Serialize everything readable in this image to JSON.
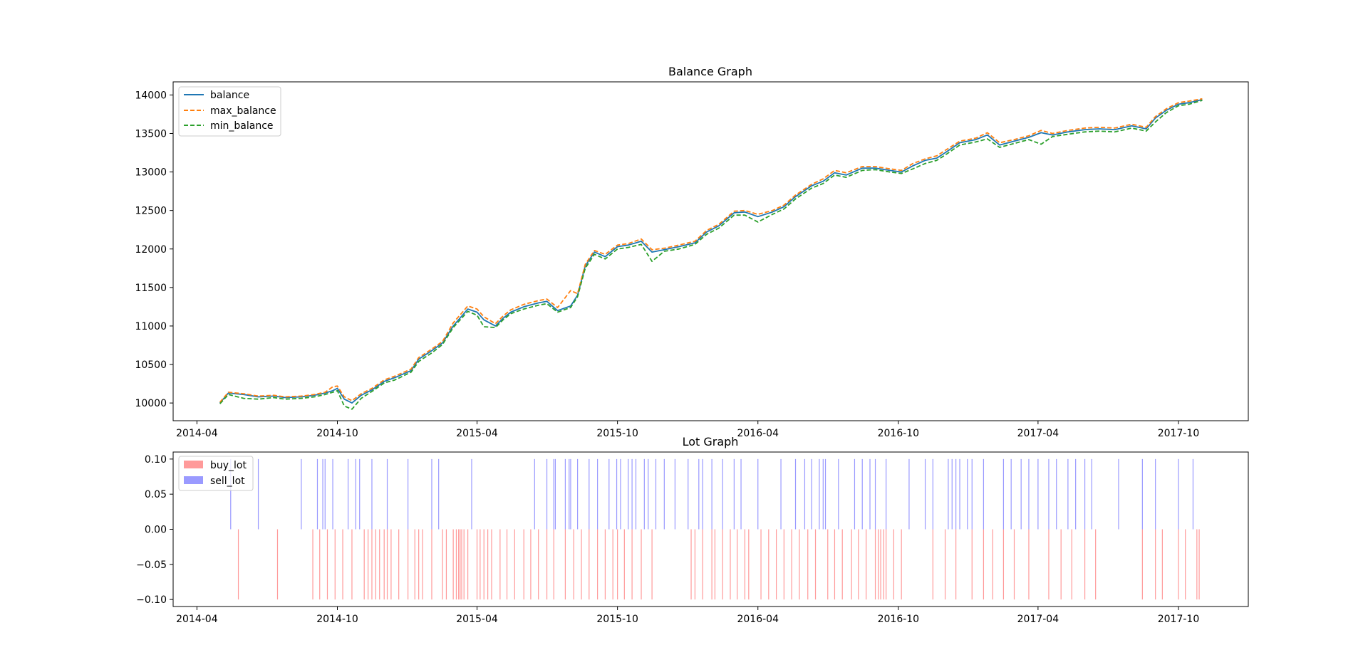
{
  "chart_data": [
    {
      "type": "line",
      "title": "Balance Graph",
      "xlabel": "",
      "ylabel": "",
      "x_range": [
        "2014-03-01",
        "2017-12-31"
      ],
      "ylim": [
        9770,
        14170
      ],
      "x_ticks": [
        "2014-04",
        "2014-10",
        "2015-04",
        "2015-10",
        "2016-04",
        "2016-10",
        "2017-04",
        "2017-10"
      ],
      "y_ticks": [
        10000,
        10500,
        11000,
        11500,
        12000,
        12500,
        13000,
        13500,
        14000
      ],
      "legend_position": "top-left",
      "series": [
        {
          "name": "balance",
          "color": "#1f77b4",
          "style": "solid"
        },
        {
          "name": "max_balance",
          "color": "#ff7f0e",
          "style": "dashed"
        },
        {
          "name": "min_balance",
          "color": "#2ca02c",
          "style": "dashed"
        }
      ],
      "x": [
        "2014-05-01",
        "2014-05-12",
        "2014-06-01",
        "2014-06-20",
        "2014-07-10",
        "2014-07-25",
        "2014-08-15",
        "2014-09-01",
        "2014-09-15",
        "2014-09-25",
        "2014-10-01",
        "2014-10-10",
        "2014-10-20",
        "2014-11-01",
        "2014-11-15",
        "2014-12-01",
        "2014-12-15",
        "2015-01-05",
        "2015-01-15",
        "2015-02-01",
        "2015-02-15",
        "2015-03-01",
        "2015-03-20",
        "2015-04-01",
        "2015-04-10",
        "2015-04-25",
        "2015-05-05",
        "2015-05-15",
        "2015-06-01",
        "2015-06-20",
        "2015-07-01",
        "2015-07-15",
        "2015-08-01",
        "2015-08-10",
        "2015-08-20",
        "2015-09-01",
        "2015-09-15",
        "2015-10-01",
        "2015-10-15",
        "2015-11-01",
        "2015-11-15",
        "2015-12-01",
        "2015-12-20",
        "2016-01-10",
        "2016-01-25",
        "2016-02-10",
        "2016-03-01",
        "2016-03-15",
        "2016-04-01",
        "2016-04-20",
        "2016-05-05",
        "2016-05-20",
        "2016-06-10",
        "2016-06-25",
        "2016-07-10",
        "2016-07-25",
        "2016-08-15",
        "2016-09-01",
        "2016-09-20",
        "2016-10-05",
        "2016-10-20",
        "2016-11-05",
        "2016-11-20",
        "2016-12-01",
        "2016-12-20",
        "2017-01-10",
        "2017-01-25",
        "2017-02-10",
        "2017-03-01",
        "2017-03-20",
        "2017-04-05",
        "2017-04-20",
        "2017-05-10",
        "2017-06-01",
        "2017-06-20",
        "2017-07-10",
        "2017-08-01",
        "2017-08-20",
        "2017-09-01",
        "2017-09-15",
        "2017-10-01",
        "2017-10-15",
        "2017-11-01"
      ],
      "balance": [
        10000,
        10130,
        10110,
        10080,
        10090,
        10070,
        10080,
        10100,
        10130,
        10160,
        10190,
        10050,
        10000,
        10100,
        10170,
        10280,
        10330,
        10420,
        10570,
        10680,
        10780,
        11000,
        11220,
        11180,
        11080,
        11000,
        11100,
        11180,
        11250,
        11300,
        11320,
        11200,
        11260,
        11400,
        11780,
        11960,
        11900,
        12030,
        12050,
        12100,
        11960,
        11990,
        12030,
        12080,
        12220,
        12300,
        12470,
        12480,
        12420,
        12480,
        12550,
        12680,
        12820,
        12880,
        12990,
        12960,
        13050,
        13050,
        13020,
        13000,
        13080,
        13150,
        13180,
        13250,
        13380,
        13420,
        13480,
        13350,
        13400,
        13450,
        13510,
        13480,
        13520,
        13550,
        13560,
        13550,
        13600,
        13560,
        13700,
        13800,
        13880,
        13900,
        13940
      ],
      "max_balance": [
        10010,
        10140,
        10120,
        10090,
        10100,
        10080,
        10090,
        10110,
        10140,
        10210,
        10220,
        10080,
        10030,
        10120,
        10190,
        10300,
        10350,
        10440,
        10590,
        10700,
        10800,
        11040,
        11260,
        11220,
        11120,
        11030,
        11130,
        11210,
        11280,
        11330,
        11350,
        11240,
        11460,
        11420,
        11800,
        11980,
        11930,
        12050,
        12070,
        12130,
        11990,
        12010,
        12050,
        12100,
        12240,
        12320,
        12490,
        12500,
        12450,
        12500,
        12570,
        12700,
        12840,
        12910,
        13020,
        12990,
        13070,
        13070,
        13040,
        13020,
        13110,
        13170,
        13210,
        13280,
        13400,
        13440,
        13510,
        13380,
        13420,
        13470,
        13540,
        13500,
        13540,
        13570,
        13580,
        13570,
        13620,
        13580,
        13720,
        13820,
        13900,
        13920,
        13950
      ],
      "min_balance": [
        9990,
        10110,
        10060,
        10050,
        10070,
        10050,
        10060,
        10080,
        10110,
        10140,
        10160,
        9960,
        9920,
        10060,
        10150,
        10260,
        10300,
        10400,
        10540,
        10650,
        10760,
        10980,
        11190,
        11140,
        10990,
        10980,
        11080,
        11160,
        11220,
        11270,
        11290,
        11180,
        11240,
        11380,
        11750,
        11930,
        11870,
        12000,
        12020,
        12060,
        11840,
        11970,
        12000,
        12060,
        12190,
        12270,
        12440,
        12440,
        12350,
        12450,
        12520,
        12650,
        12790,
        12850,
        12960,
        12930,
        13020,
        13030,
        13000,
        12980,
        13040,
        13110,
        13150,
        13220,
        13350,
        13390,
        13430,
        13320,
        13370,
        13420,
        13360,
        13460,
        13490,
        13520,
        13530,
        13520,
        13570,
        13530,
        13650,
        13770,
        13860,
        13880,
        13930
      ]
    },
    {
      "type": "bar",
      "title": "Lot Graph",
      "xlabel": "",
      "ylabel": "",
      "x_range": [
        "2014-03-01",
        "2017-12-31"
      ],
      "ylim": [
        -0.11,
        0.11
      ],
      "x_ticks": [
        "2014-04",
        "2014-10",
        "2015-04",
        "2015-10",
        "2016-04",
        "2016-10",
        "2017-04",
        "2017-10"
      ],
      "y_ticks": [
        0.1,
        0.05,
        0.0,
        -0.05,
        -0.1
      ],
      "y_tick_labels": [
        "0.10",
        "0.05",
        "0.00",
        "−0.05",
        "−0.10"
      ],
      "legend_position": "top-left",
      "series": [
        {
          "name": "buy_lot",
          "color": "#ff9a9a",
          "value": -0.1
        },
        {
          "name": "sell_lot",
          "color": "#9a9aff",
          "value": 0.1
        }
      ],
      "sell_lot_dates": [
        "2014-05-15",
        "2014-06-20",
        "2014-08-15",
        "2014-09-05",
        "2014-09-12",
        "2014-09-15",
        "2014-09-25",
        "2014-10-15",
        "2014-10-25",
        "2014-10-30",
        "2014-11-15",
        "2014-12-05",
        "2015-01-01",
        "2015-02-01",
        "2015-02-10",
        "2015-03-25",
        "2015-06-15",
        "2015-07-01",
        "2015-07-10",
        "2015-07-12",
        "2015-07-25",
        "2015-07-30",
        "2015-08-01",
        "2015-08-10",
        "2015-08-25",
        "2015-09-05",
        "2015-09-20",
        "2015-09-30",
        "2015-10-05",
        "2015-10-15",
        "2015-10-20",
        "2015-10-25",
        "2015-11-05",
        "2015-11-10",
        "2015-11-20",
        "2015-12-01",
        "2015-12-15",
        "2016-01-01",
        "2016-01-15",
        "2016-01-20",
        "2016-02-01",
        "2016-02-15",
        "2016-03-01",
        "2016-03-10",
        "2016-04-01",
        "2016-05-01",
        "2016-05-20",
        "2016-06-01",
        "2016-06-10",
        "2016-06-20",
        "2016-06-25",
        "2016-06-28",
        "2016-07-15",
        "2016-08-05",
        "2016-08-15",
        "2016-08-25",
        "2016-09-01",
        "2016-09-15",
        "2016-10-15",
        "2016-11-05",
        "2016-11-15",
        "2016-12-05",
        "2016-12-10",
        "2016-12-15",
        "2016-12-20",
        "2016-12-30",
        "2017-01-05",
        "2017-01-20",
        "2017-02-15",
        "2017-02-25",
        "2017-03-10",
        "2017-03-20",
        "2017-04-01",
        "2017-04-15",
        "2017-04-25",
        "2017-05-10",
        "2017-05-20",
        "2017-06-01",
        "2017-06-10",
        "2017-07-15",
        "2017-08-15",
        "2017-09-01",
        "2017-10-01",
        "2017-10-20"
      ],
      "buy_lot_dates": [
        "2014-05-25",
        "2014-07-15",
        "2014-08-30",
        "2014-09-08",
        "2014-09-18",
        "2014-09-28",
        "2014-10-08",
        "2014-10-20",
        "2014-11-05",
        "2014-11-10",
        "2014-11-15",
        "2014-11-20",
        "2014-11-25",
        "2014-12-01",
        "2014-12-05",
        "2014-12-10",
        "2014-12-20",
        "2015-01-01",
        "2015-01-10",
        "2015-01-15",
        "2015-01-20",
        "2015-02-01",
        "2015-02-15",
        "2015-02-20",
        "2015-03-01",
        "2015-03-05",
        "2015-03-08",
        "2015-03-10",
        "2015-03-12",
        "2015-03-15",
        "2015-03-20",
        "2015-04-01",
        "2015-04-05",
        "2015-04-10",
        "2015-04-15",
        "2015-04-20",
        "2015-05-01",
        "2015-05-10",
        "2015-05-20",
        "2015-06-01",
        "2015-06-10",
        "2015-06-20",
        "2015-07-01",
        "2015-07-10",
        "2015-07-25",
        "2015-08-05",
        "2015-08-15",
        "2015-08-25",
        "2015-09-05",
        "2015-09-15",
        "2015-09-25",
        "2015-10-01",
        "2015-10-10",
        "2015-10-20",
        "2015-11-01",
        "2015-11-15",
        "2016-01-05",
        "2016-01-10",
        "2016-01-20",
        "2016-02-01",
        "2016-02-05",
        "2016-02-15",
        "2016-02-25",
        "2016-03-05",
        "2016-03-15",
        "2016-03-20",
        "2016-04-05",
        "2016-04-15",
        "2016-04-25",
        "2016-05-05",
        "2016-05-15",
        "2016-05-25",
        "2016-06-05",
        "2016-06-15",
        "2016-07-01",
        "2016-07-10",
        "2016-07-20",
        "2016-08-01",
        "2016-08-10",
        "2016-08-20",
        "2016-09-01",
        "2016-09-05",
        "2016-09-08",
        "2016-09-12",
        "2016-09-15",
        "2016-09-25",
        "2016-10-05",
        "2016-11-15",
        "2016-12-01",
        "2016-12-15",
        "2017-01-05",
        "2017-01-20",
        "2017-02-01",
        "2017-02-15",
        "2017-03-01",
        "2017-03-20",
        "2017-04-15",
        "2017-05-01",
        "2017-05-15",
        "2017-06-01",
        "2017-06-15",
        "2017-08-15",
        "2017-09-01",
        "2017-09-10",
        "2017-10-01",
        "2017-10-10",
        "2017-10-25",
        "2017-10-28"
      ]
    }
  ]
}
